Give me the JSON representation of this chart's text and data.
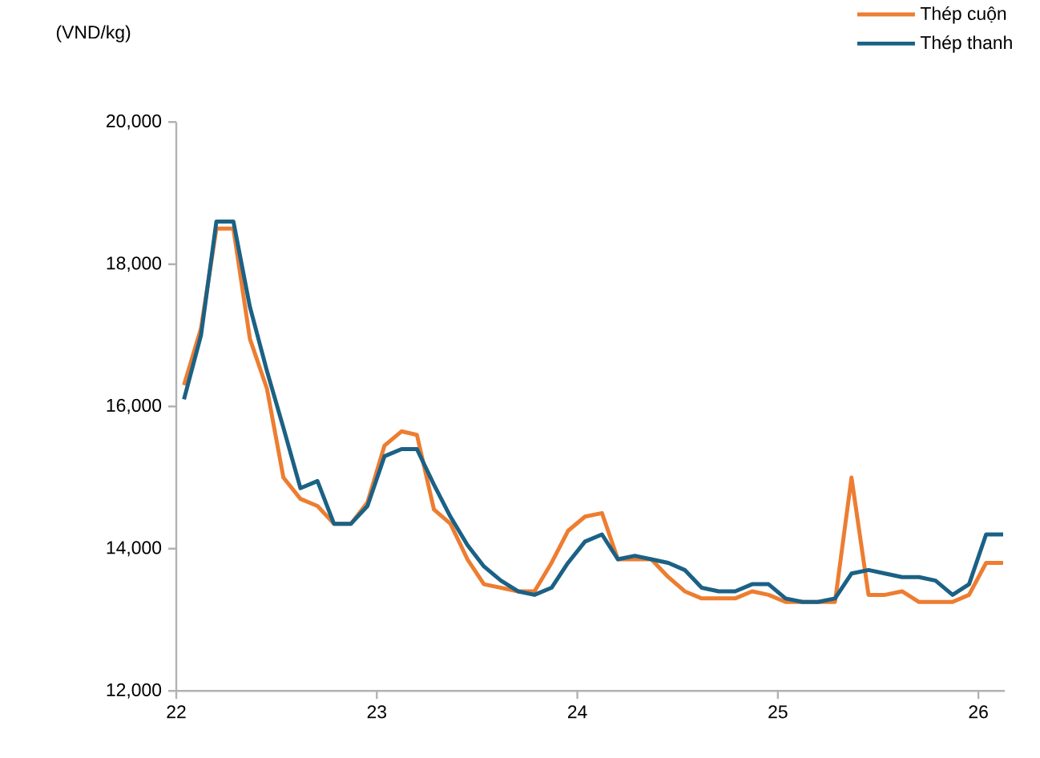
{
  "chart_data": {
    "type": "line",
    "ylabel": "(VND/kg)",
    "x": [
      "2022-01-15",
      "2022-02-15",
      "2022-03-15",
      "2022-04-15",
      "2022-05-15",
      "2022-06-15",
      "2022-07-15",
      "2022-08-15",
      "2022-09-15",
      "2022-10-15",
      "2022-11-15",
      "2022-12-15",
      "2023-01-15",
      "2023-02-15",
      "2023-03-15",
      "2023-04-15",
      "2023-05-15",
      "2023-06-15",
      "2023-07-15",
      "2023-08-15",
      "2023-09-15",
      "2023-10-15",
      "2023-11-15",
      "2023-12-15",
      "2024-01-15",
      "2024-02-15",
      "2024-03-15",
      "2024-04-15",
      "2024-05-15",
      "2024-06-15",
      "2024-07-15",
      "2024-08-15",
      "2024-09-15",
      "2024-10-15",
      "2024-11-15",
      "2024-12-15",
      "2025-01-15",
      "2025-02-15",
      "2025-03-15",
      "2025-04-15",
      "2025-05-15",
      "2025-06-15",
      "2025-07-15",
      "2025-08-15",
      "2025-09-15",
      "2025-10-15",
      "2025-11-15",
      "2025-12-15",
      "2026-01-15",
      "2026-02-15"
    ],
    "series": [
      {
        "name": "Thép cuộn",
        "color": "#ed7d31",
        "values": [
          16300,
          17100,
          18500,
          18500,
          16950,
          16250,
          15000,
          14700,
          14600,
          14350,
          14350,
          14650,
          15450,
          15650,
          15600,
          14550,
          14350,
          13850,
          13500,
          13450,
          13400,
          13400,
          13800,
          14250,
          14450,
          14500,
          13850,
          13850,
          13850,
          13600,
          13400,
          13300,
          13300,
          13300,
          13400,
          13350,
          13250,
          13250,
          13250,
          13250,
          15000,
          13350,
          13350,
          13400,
          13250,
          13250,
          13250,
          13350,
          13800,
          13800
        ]
      },
      {
        "name": "Thép thanh",
        "color": "#1b6185",
        "values": [
          16100,
          17000,
          18600,
          18600,
          17400,
          16500,
          15700,
          14850,
          14950,
          14350,
          14350,
          14600,
          15300,
          15400,
          15400,
          14900,
          14450,
          14050,
          13750,
          13550,
          13400,
          13350,
          13450,
          13800,
          14100,
          14200,
          13850,
          13900,
          13850,
          13800,
          13700,
          13450,
          13400,
          13400,
          13500,
          13500,
          13300,
          13250,
          13250,
          13300,
          13650,
          13700,
          13650,
          13600,
          13600,
          13550,
          13350,
          13500,
          14200,
          14200
        ]
      }
    ],
    "xlim": [
      "2022-01-01",
      "2026-02-18"
    ],
    "xticks": [
      {
        "value": "2022-01-01",
        "label": "22"
      },
      {
        "value": "2023-01-01",
        "label": "23"
      },
      {
        "value": "2024-01-01",
        "label": "24"
      },
      {
        "value": "2025-01-01",
        "label": "25"
      },
      {
        "value": "2026-01-01",
        "label": "26"
      }
    ],
    "ylim": [
      12000,
      20000
    ],
    "yticks": [
      {
        "value": 12000,
        "label": "12,000"
      },
      {
        "value": 14000,
        "label": "14,000"
      },
      {
        "value": 16000,
        "label": "16,000"
      },
      {
        "value": 18000,
        "label": "18,000"
      },
      {
        "value": 20000,
        "label": "20,000"
      }
    ],
    "grid": false,
    "legend": "top right",
    "marker": "none",
    "line_style": "solid"
  }
}
